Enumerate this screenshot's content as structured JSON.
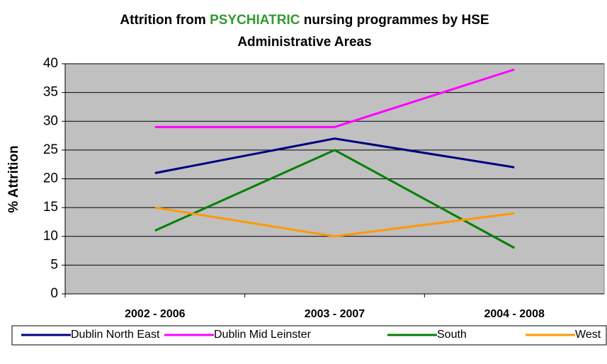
{
  "chart_data": {
    "type": "line",
    "title_lines": [
      [
        "Attrition from",
        "PSYCHIATRIC",
        "nursing programmes by HSE"
      ],
      [
        "Administrative Areas"
      ]
    ],
    "title_highlight_color": "#339933",
    "y_label": "% Attrition",
    "categories": [
      "2002 - 2006",
      "2003 - 2007",
      "2004 - 2008"
    ],
    "series": [
      {
        "name": "Dublin North East",
        "color": "#000080",
        "values": [
          21,
          27,
          22
        ]
      },
      {
        "name": "Dublin Mid Leinster",
        "color": "#FF00FF",
        "values": [
          29,
          29,
          39
        ]
      },
      {
        "name": "South",
        "color": "#008000",
        "values": [
          11,
          25,
          8
        ]
      },
      {
        "name": "West",
        "color": "#FF9900",
        "values": [
          15,
          10,
          14
        ]
      }
    ],
    "ylim": [
      0,
      40
    ],
    "yticks": [
      0,
      5,
      10,
      15,
      20,
      25,
      30,
      35,
      40
    ],
    "grid": true,
    "plot_background": "#C0C0C0",
    "legend": "bottom"
  }
}
